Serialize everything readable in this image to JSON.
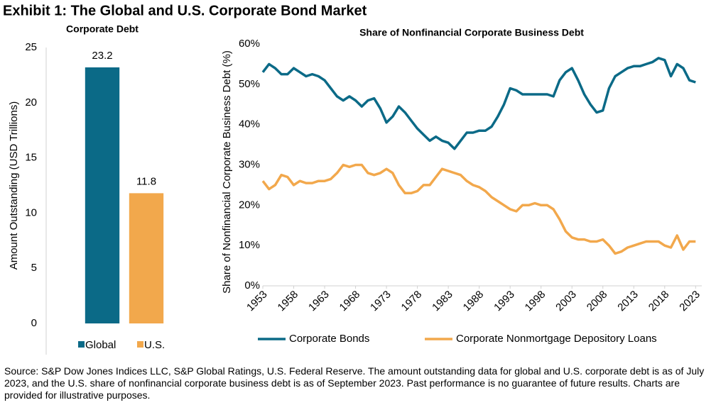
{
  "title": "Exhibit 1: The Global and U.S. Corporate Bond Market",
  "chart_data": [
    {
      "type": "bar",
      "title": "Corporate Debt",
      "ylabel": "Amount Outstanding (USD Trillions)",
      "categories": [
        "Global",
        "U.S."
      ],
      "values": [
        23.2,
        11.8
      ],
      "colors": [
        "#0b6a87",
        "#f2a84c"
      ],
      "ylim": [
        0,
        25
      ],
      "yticks": [
        0,
        5,
        10,
        15,
        20,
        25
      ],
      "grid": false,
      "legend": "bottom"
    },
    {
      "type": "line",
      "title": "Share of Nonfinancial Corporate Business Debt",
      "ylabel": "Share of Nonfinancial Corporate Business Debt (%)",
      "x": [
        1953,
        1954,
        1955,
        1956,
        1957,
        1958,
        1959,
        1960,
        1961,
        1962,
        1963,
        1964,
        1965,
        1966,
        1967,
        1968,
        1969,
        1970,
        1971,
        1972,
        1973,
        1974,
        1975,
        1976,
        1977,
        1978,
        1979,
        1980,
        1981,
        1982,
        1983,
        1984,
        1985,
        1986,
        1987,
        1988,
        1989,
        1990,
        1991,
        1992,
        1993,
        1994,
        1995,
        1996,
        1997,
        1998,
        1999,
        2000,
        2001,
        2002,
        2003,
        2004,
        2005,
        2006,
        2007,
        2008,
        2009,
        2010,
        2011,
        2012,
        2013,
        2014,
        2015,
        2016,
        2017,
        2018,
        2019,
        2020,
        2021,
        2022,
        2023
      ],
      "series": [
        {
          "name": "Corporate Bonds",
          "color": "#0b6a87",
          "values": [
            53,
            55,
            54,
            52.5,
            52.5,
            54,
            53,
            52,
            52.5,
            52,
            51,
            49,
            47,
            46,
            47,
            46,
            44.5,
            46,
            46.5,
            44,
            40.5,
            42,
            44.5,
            43,
            41,
            39,
            37.5,
            36,
            37,
            36,
            35.5,
            34,
            36,
            38,
            38,
            38.5,
            38.5,
            39.5,
            42,
            45,
            49,
            48.5,
            47.5,
            47.5,
            47.5,
            47.5,
            47.5,
            47,
            51,
            53,
            54,
            51,
            47.5,
            45,
            43,
            43.5,
            49,
            52,
            53,
            54,
            54.5,
            54.5,
            55,
            55.5,
            56.5,
            56,
            52,
            55,
            54,
            51,
            50.5
          ]
        },
        {
          "name": "Corporate Nonmortgage Depository Loans",
          "color": "#f2a84c",
          "values": [
            26,
            24,
            25,
            27.5,
            27,
            25,
            26,
            25.5,
            25.5,
            26,
            26,
            26.5,
            28,
            30,
            29.5,
            30,
            30,
            28,
            27.5,
            28,
            29,
            28,
            25,
            23,
            23,
            23.5,
            25,
            25,
            27,
            29,
            28.5,
            28,
            27.5,
            26,
            25,
            24.5,
            23.5,
            22,
            21,
            20,
            19,
            18.5,
            20,
            20,
            20.5,
            20,
            20,
            19,
            16.5,
            13.5,
            12,
            11.5,
            11.5,
            11,
            11,
            11.5,
            10,
            8,
            8.5,
            9.5,
            10,
            10.5,
            11,
            11,
            11,
            10,
            9.5,
            12.5,
            9,
            11,
            11
          ]
        }
      ],
      "xlim": [
        1953,
        2024
      ],
      "xticks": [
        1953,
        1958,
        1963,
        1968,
        1973,
        1978,
        1983,
        1988,
        1993,
        1998,
        2003,
        2008,
        2013,
        2018,
        2023
      ],
      "ylim": [
        0,
        60
      ],
      "yticks": [
        {
          "value": 0,
          "label": "0%"
        },
        {
          "value": 10,
          "label": "10%"
        },
        {
          "value": 20,
          "label": "20%"
        },
        {
          "value": 30,
          "label": "30%"
        },
        {
          "value": 40,
          "label": "40%"
        },
        {
          "value": 50,
          "label": "50%"
        },
        {
          "value": 60,
          "label": "60%"
        }
      ],
      "grid": false,
      "legend": "bottom"
    }
  ],
  "footnote": "Source: S&P Dow Jones Indices LLC, S&P Global Ratings, U.S. Federal Reserve. The amount outstanding data for global and U.S. corporate debt is as of July 2023, and the U.S. share of nonfinancial corporate business debt is as of September 2023. Past performance is no guarantee of future results. Charts are provided for illustrative purposes."
}
